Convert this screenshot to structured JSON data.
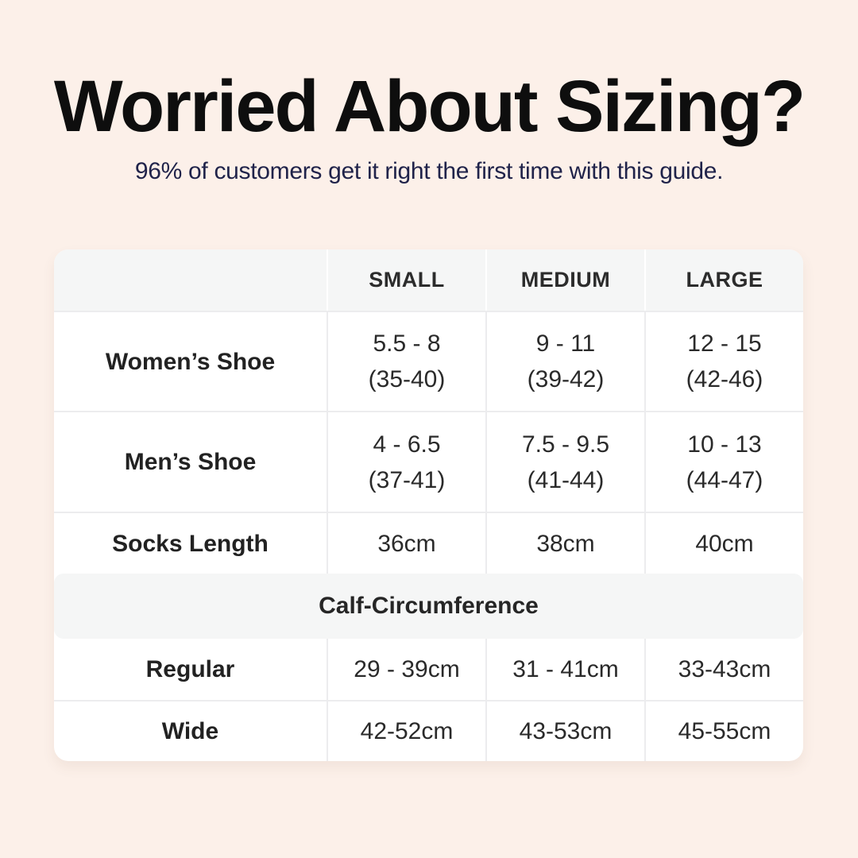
{
  "header": {
    "title": "Worried About Sizing?",
    "subtitle": "96% of customers get it right the first time with this guide."
  },
  "colors": {
    "page_background": "#FCF0E9",
    "table_background": "#FFFFFF",
    "header_band_gray": "#F5F6F6",
    "divider": "#ECECEE",
    "title_text": "#0E0E0E",
    "subtitle_navy": "#20234A",
    "table_text": "#2A2A2A"
  },
  "chart_data": {
    "type": "table",
    "title": "Worried About Sizing?",
    "columns": [
      "",
      "SMALL",
      "MEDIUM",
      "LARGE"
    ],
    "rows": [
      {
        "label": "Women’s Shoe",
        "small": "5.5 - 8",
        "small_eu": "(35-40)",
        "medium": "9 - 11",
        "medium_eu": "(39-42)",
        "large": "12 - 15",
        "large_eu": "(42-46)"
      },
      {
        "label": "Men’s Shoe",
        "small": "4 - 6.5",
        "small_eu": "(37-41)",
        "medium": "7.5 - 9.5",
        "medium_eu": "(41-44)",
        "large": "10 - 13",
        "large_eu": "(44-47)"
      },
      {
        "label": "Socks Length",
        "small": "36cm",
        "medium": "38cm",
        "large": "40cm"
      }
    ],
    "section_header": "Calf-Circumference",
    "section_rows": [
      {
        "label": "Regular",
        "small": "29 - 39cm",
        "medium": "31 - 41cm",
        "large": "33-43cm"
      },
      {
        "label": "Wide",
        "small": "42-52cm",
        "medium": "43-53cm",
        "large": "45-55cm"
      }
    ]
  }
}
